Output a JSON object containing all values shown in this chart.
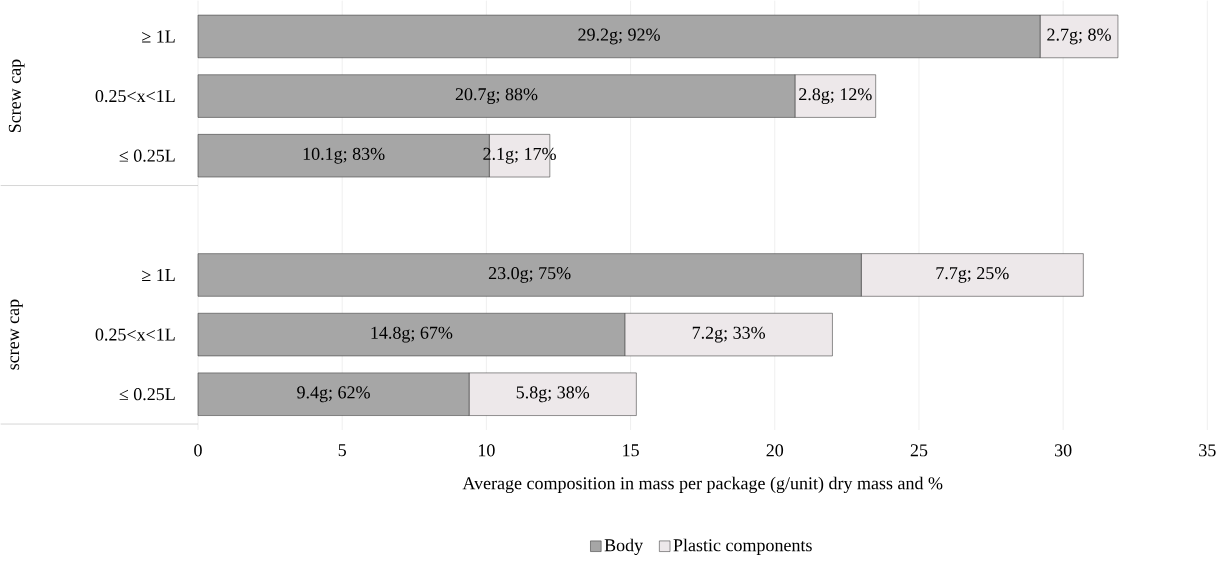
{
  "chart_data": {
    "type": "bar",
    "orientation": "horizontal",
    "stacked": true,
    "categories": [
      "≥ 1L",
      "0.25<x<1L",
      "≤ 0.25L",
      null,
      "≥ 1L",
      "0.25<x<1L",
      "≤ 0.25L"
    ],
    "series": [
      {
        "name": "Body",
        "color": "#a6a6a6",
        "values": [
          29.2,
          20.7,
          10.1,
          null,
          23.0,
          14.8,
          9.4
        ],
        "value_labels": [
          "29.2g; 92%",
          "20.7g; 88%",
          "10.1g; 83%",
          null,
          "23.0g; 75%",
          "14.8g; 67%",
          "9.4g; 62%"
        ]
      },
      {
        "name": "Plastic components",
        "color": "#ede8ea",
        "values": [
          2.7,
          2.8,
          2.1,
          null,
          7.7,
          7.2,
          5.8
        ],
        "value_labels": [
          "2.7g; 8%",
          "2.8g; 12%",
          "2.1g; 17%",
          null,
          "7.7g; 25%",
          "7.2g; 33%",
          "5.8g; 38%"
        ]
      }
    ],
    "xlabel": "Average composition in mass per package (g/unit) dry mass and %",
    "annotations": [
      "Screw cap",
      "screw cap"
    ],
    "xlim": [
      0,
      35
    ],
    "xticks": [
      0,
      5,
      10,
      15,
      20,
      25,
      30,
      35
    ],
    "grid": "x",
    "legend": "bottom"
  }
}
